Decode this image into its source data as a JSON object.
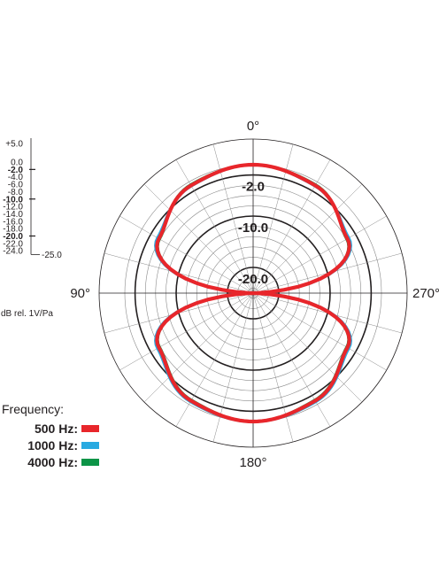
{
  "chart_data": {
    "type": "polar",
    "pattern": "figure-8 (bidirectional)",
    "angle_labels": [
      "0°",
      "90°",
      "180°",
      "270°"
    ],
    "ring_labels": [
      "-2.0",
      "-10.0",
      "-20.0"
    ],
    "scale": {
      "ticks": [
        {
          "label": "+5.0",
          "value": 5,
          "bold": false
        },
        {
          "label": "0.0",
          "value": 0,
          "bold": false
        },
        {
          "label": "-2.0",
          "value": -2,
          "bold": true
        },
        {
          "label": "-4.0",
          "value": -4,
          "bold": false
        },
        {
          "label": "-6.0",
          "value": -6,
          "bold": false
        },
        {
          "label": "-8.0",
          "value": -8,
          "bold": false
        },
        {
          "label": "-10.0",
          "value": -10,
          "bold": true
        },
        {
          "label": "-12.0",
          "value": -12,
          "bold": false
        },
        {
          "label": "-14.0",
          "value": -14,
          "bold": false
        },
        {
          "label": "-16.0",
          "value": -16,
          "bold": false
        },
        {
          "label": "-18.0",
          "value": -18,
          "bold": false
        },
        {
          "label": "-20.0",
          "value": -20,
          "bold": true
        },
        {
          "label": "-22.0",
          "value": -22,
          "bold": false
        },
        {
          "label": "-24.0",
          "value": -24,
          "bold": false
        },
        {
          "label": "-25.0",
          "value": -25,
          "bold": false
        }
      ],
      "unit": "dB rel. 1V/Pa",
      "range": [
        -25,
        5
      ]
    },
    "bold_rings_db": [
      -2,
      -10,
      -20
    ],
    "series": [
      {
        "name": "500 Hz:",
        "color": "#e8262b",
        "angles_deg": [
          0,
          30,
          60,
          90,
          120,
          150,
          180,
          210,
          240,
          270,
          300,
          330
        ],
        "values_db": [
          0,
          -0.8,
          -3.8,
          -25,
          -3.8,
          -0.8,
          0,
          -0.8,
          -3.8,
          -25,
          -3.8,
          -0.8
        ]
      },
      {
        "name": "1000 Hz:",
        "color": "#29aae1",
        "angles_deg": [
          0,
          30,
          60,
          90,
          120,
          150,
          180,
          210,
          240,
          270,
          300,
          330
        ],
        "values_db": [
          0,
          -0.9,
          -3.5,
          -25,
          -3.5,
          -0.6,
          0,
          -0.6,
          -3.5,
          -25,
          -3.5,
          -0.9
        ]
      },
      {
        "name": "4000 Hz:",
        "color": "#0c9447",
        "angles_deg": [
          0,
          30,
          60,
          90,
          120,
          150,
          180,
          210,
          240,
          270,
          300,
          330
        ],
        "values_db": [
          0,
          -0.6,
          -4.0,
          -25,
          -4.0,
          -1.0,
          0,
          -1.0,
          -4.0,
          -25,
          -4.0,
          -0.6
        ]
      }
    ]
  },
  "legend": {
    "title": "Frequency:"
  }
}
